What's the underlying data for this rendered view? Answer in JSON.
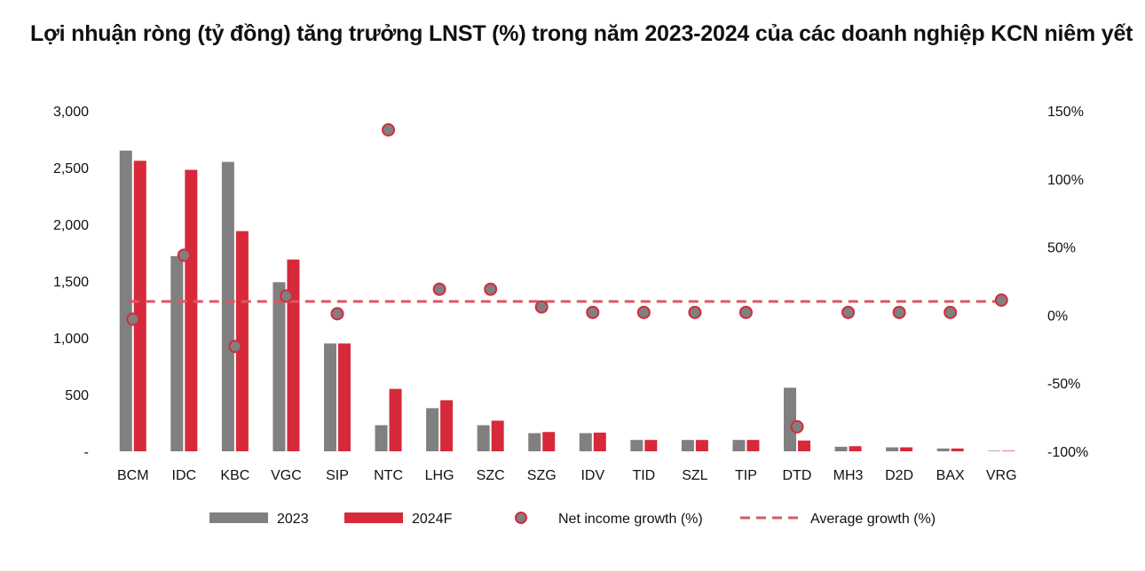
{
  "chart_data": {
    "type": "bar",
    "title": "Lợi nhuận ròng (tỷ đồng) tăng trưởng LNST (%) trong năm 2023-2024 của các doanh nghiệp KCN niêm yết",
    "categories": [
      "BCM",
      "IDC",
      "KBC",
      "VGC",
      "SIP",
      "NTC",
      "LHG",
      "SZC",
      "SZG",
      "IDV",
      "TID",
      "SZL",
      "TIP",
      "DTD",
      "MH3",
      "D2D",
      "BAX",
      "VRG"
    ],
    "series": [
      {
        "name": "2023",
        "kind": "bar",
        "axis": "left",
        "color": "#808080",
        "values": [
          2650,
          1720,
          2550,
          1490,
          950,
          230,
          380,
          230,
          160,
          160,
          100,
          100,
          100,
          560,
          40,
          35,
          25,
          5
        ]
      },
      {
        "name": "2024F",
        "kind": "bar",
        "axis": "left",
        "color": "#d62a3a",
        "values": [
          2560,
          2480,
          1940,
          1690,
          950,
          550,
          450,
          270,
          170,
          165,
          100,
          100,
          100,
          95,
          45,
          35,
          25,
          5
        ]
      },
      {
        "name": "Net income growth (%)",
        "kind": "scatter",
        "axis": "right",
        "color": "#808080",
        "edge": "#d62a3a",
        "values": [
          -3,
          44,
          -23,
          14,
          1,
          136,
          19,
          19,
          6,
          2,
          2,
          2,
          2,
          -82,
          2,
          2,
          2,
          11
        ]
      },
      {
        "name": "Average growth (%)",
        "kind": "line",
        "axis": "right",
        "style": "dashed",
        "color": "#e05565",
        "values": [
          10,
          10,
          10,
          10,
          10,
          10,
          10,
          10,
          10,
          10,
          10,
          10,
          10,
          10,
          10,
          10,
          10,
          10
        ]
      }
    ],
    "yleft": {
      "lim": [
        0,
        3000
      ],
      "ticks": [
        0,
        500,
        1000,
        1500,
        2000,
        2500,
        3000
      ],
      "tick_labels": [
        "-",
        "500",
        "1,000",
        "1,500",
        "2,000",
        "2,500",
        "3,000"
      ]
    },
    "yright": {
      "lim": [
        -100,
        150
      ],
      "ticks": [
        -100,
        -50,
        0,
        50,
        100,
        150
      ],
      "tick_labels": [
        "-100%",
        "-50%",
        "0%",
        "50%",
        "100%",
        "150%"
      ]
    },
    "grid": false,
    "legend_position": "bottom"
  }
}
